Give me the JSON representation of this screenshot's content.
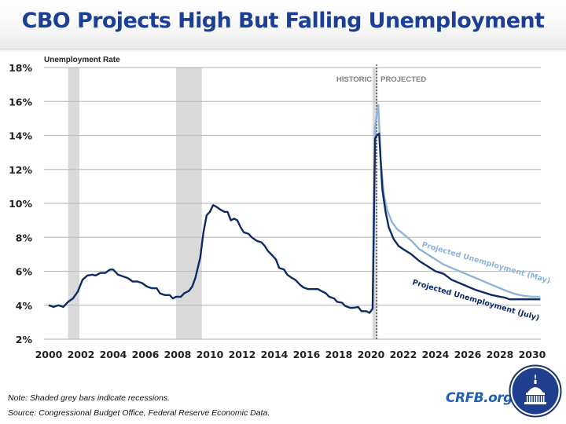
{
  "header": {
    "title": "CBO Projects High But Falling Unemployment"
  },
  "chart_data": {
    "type": "line",
    "title": "CBO Projects High But Falling Unemployment",
    "ylabel": "Unemployment Rate",
    "xlabel": "",
    "xlim": [
      2000,
      2030.5
    ],
    "ylim": [
      2,
      18
    ],
    "y_ticks": [
      2,
      4,
      6,
      8,
      10,
      12,
      14,
      16,
      18
    ],
    "y_tick_labels": [
      "2%",
      "4%",
      "6%",
      "8%",
      "10%",
      "12%",
      "14%",
      "16%",
      "18%"
    ],
    "x_ticks": [
      2000,
      2002,
      2004,
      2006,
      2008,
      2010,
      2012,
      2014,
      2016,
      2018,
      2020,
      2022,
      2024,
      2026,
      2028,
      2030
    ],
    "x_tick_labels": [
      "2000",
      "2002",
      "2004",
      "2006",
      "2008",
      "2010",
      "2012",
      "2014",
      "2016",
      "2018",
      "2020",
      "2022",
      "2024",
      "2026",
      "2028",
      "2030"
    ],
    "grid": true,
    "recessions": [
      {
        "start": 2001.2,
        "end": 2001.9
      },
      {
        "start": 2007.9,
        "end": 2009.5
      },
      {
        "start": 2020.1,
        "end": 2020.4
      }
    ],
    "divider": {
      "x": 2020.35,
      "left_label": "HISTORIC",
      "right_label": "PROJECTED"
    },
    "series": [
      {
        "name": "Historic Unemployment",
        "color": "#0d2a63",
        "points": [
          [
            2000.0,
            4.0
          ],
          [
            2000.3,
            3.9
          ],
          [
            2000.6,
            4.0
          ],
          [
            2000.9,
            3.9
          ],
          [
            2001.2,
            4.2
          ],
          [
            2001.5,
            4.4
          ],
          [
            2001.8,
            4.8
          ],
          [
            2002.1,
            5.5
          ],
          [
            2002.4,
            5.75
          ],
          [
            2002.7,
            5.8
          ],
          [
            2002.9,
            5.75
          ],
          [
            2003.2,
            5.9
          ],
          [
            2003.5,
            5.9
          ],
          [
            2003.8,
            6.1
          ],
          [
            2004.0,
            6.1
          ],
          [
            2004.3,
            5.8
          ],
          [
            2004.6,
            5.7
          ],
          [
            2004.9,
            5.6
          ],
          [
            2005.2,
            5.4
          ],
          [
            2005.5,
            5.4
          ],
          [
            2005.8,
            5.3
          ],
          [
            2006.1,
            5.1
          ],
          [
            2006.4,
            5.0
          ],
          [
            2006.7,
            5.0
          ],
          [
            2006.9,
            4.7
          ],
          [
            2007.2,
            4.6
          ],
          [
            2007.5,
            4.6
          ],
          [
            2007.7,
            4.4
          ],
          [
            2007.9,
            4.5
          ],
          [
            2008.2,
            4.5
          ],
          [
            2008.4,
            4.7
          ],
          [
            2008.7,
            4.85
          ],
          [
            2008.9,
            5.1
          ],
          [
            2009.1,
            5.6
          ],
          [
            2009.4,
            6.8
          ],
          [
            2009.6,
            8.3
          ],
          [
            2009.8,
            9.3
          ],
          [
            2010.0,
            9.5
          ],
          [
            2010.2,
            9.9
          ],
          [
            2010.4,
            9.8
          ],
          [
            2010.7,
            9.6
          ],
          [
            2010.9,
            9.5
          ],
          [
            2011.1,
            9.5
          ],
          [
            2011.3,
            9.0
          ],
          [
            2011.5,
            9.1
          ],
          [
            2011.7,
            9.0
          ],
          [
            2011.9,
            8.6
          ],
          [
            2012.1,
            8.3
          ],
          [
            2012.4,
            8.2
          ],
          [
            2012.6,
            8.0
          ],
          [
            2012.9,
            7.8
          ],
          [
            2013.2,
            7.7
          ],
          [
            2013.4,
            7.5
          ],
          [
            2013.6,
            7.2
          ],
          [
            2013.9,
            6.9
          ],
          [
            2014.1,
            6.7
          ],
          [
            2014.3,
            6.2
          ],
          [
            2014.6,
            6.1
          ],
          [
            2014.8,
            5.8
          ],
          [
            2015.1,
            5.6
          ],
          [
            2015.3,
            5.5
          ],
          [
            2015.6,
            5.2
          ],
          [
            2015.8,
            5.05
          ],
          [
            2016.1,
            4.95
          ],
          [
            2016.4,
            4.95
          ],
          [
            2016.7,
            4.95
          ],
          [
            2016.9,
            4.85
          ],
          [
            2017.2,
            4.7
          ],
          [
            2017.4,
            4.5
          ],
          [
            2017.7,
            4.4
          ],
          [
            2017.9,
            4.2
          ],
          [
            2018.2,
            4.15
          ],
          [
            2018.4,
            3.95
          ],
          [
            2018.7,
            3.85
          ],
          [
            2018.9,
            3.85
          ],
          [
            2019.2,
            3.9
          ],
          [
            2019.4,
            3.65
          ],
          [
            2019.7,
            3.65
          ],
          [
            2019.9,
            3.55
          ],
          [
            2020.1,
            3.8
          ],
          [
            2020.25,
            13.8
          ],
          [
            2020.35,
            14.0
          ]
        ]
      },
      {
        "name": "Projected Unemployment (May)",
        "color": "#8fb3da",
        "label": "Projected Unemployment (May)",
        "points": [
          [
            2020.1,
            3.8
          ],
          [
            2020.25,
            14.5
          ],
          [
            2020.45,
            15.8
          ],
          [
            2020.6,
            12.5
          ],
          [
            2020.8,
            10.5
          ],
          [
            2021.0,
            9.6
          ],
          [
            2021.3,
            8.9
          ],
          [
            2021.6,
            8.5
          ],
          [
            2022.0,
            8.2
          ],
          [
            2022.5,
            7.8
          ],
          [
            2023.0,
            7.3
          ],
          [
            2023.5,
            7.0
          ],
          [
            2024.0,
            6.7
          ],
          [
            2024.5,
            6.4
          ],
          [
            2025.0,
            6.2
          ],
          [
            2025.5,
            6.0
          ],
          [
            2026.0,
            5.8
          ],
          [
            2026.5,
            5.6
          ],
          [
            2027.0,
            5.4
          ],
          [
            2027.5,
            5.2
          ],
          [
            2028.0,
            5.0
          ],
          [
            2028.5,
            4.8
          ],
          [
            2029.0,
            4.65
          ],
          [
            2029.5,
            4.55
          ],
          [
            2030.0,
            4.5
          ],
          [
            2030.5,
            4.5
          ]
        ]
      },
      {
        "name": "Projected Unemployment (July)",
        "color": "#0d2a63",
        "label": "Projected Unemployment (July)",
        "points": [
          [
            2020.35,
            14.0
          ],
          [
            2020.5,
            14.1
          ],
          [
            2020.7,
            10.8
          ],
          [
            2020.9,
            9.5
          ],
          [
            2021.1,
            8.6
          ],
          [
            2021.4,
            7.9
          ],
          [
            2021.7,
            7.5
          ],
          [
            2022.0,
            7.3
          ],
          [
            2022.5,
            7.0
          ],
          [
            2023.0,
            6.6
          ],
          [
            2023.5,
            6.3
          ],
          [
            2024.0,
            6.0
          ],
          [
            2024.5,
            5.85
          ],
          [
            2025.0,
            5.5
          ],
          [
            2025.5,
            5.3
          ],
          [
            2026.0,
            5.1
          ],
          [
            2026.5,
            4.9
          ],
          [
            2027.0,
            4.75
          ],
          [
            2027.5,
            4.6
          ],
          [
            2028.0,
            4.5
          ],
          [
            2028.3,
            4.45
          ],
          [
            2028.6,
            4.35
          ],
          [
            2029.0,
            4.35
          ],
          [
            2029.5,
            4.35
          ],
          [
            2030.0,
            4.35
          ],
          [
            2030.5,
            4.35
          ]
        ]
      }
    ]
  },
  "footer": {
    "note": "Note: Shaded grey bars indicate recessions.",
    "source": "Source: Congressional Budget Office, Federal Reserve Economic Data.",
    "brand": "CRFB.org",
    "logo_icon": "capitol-dome-icon"
  }
}
